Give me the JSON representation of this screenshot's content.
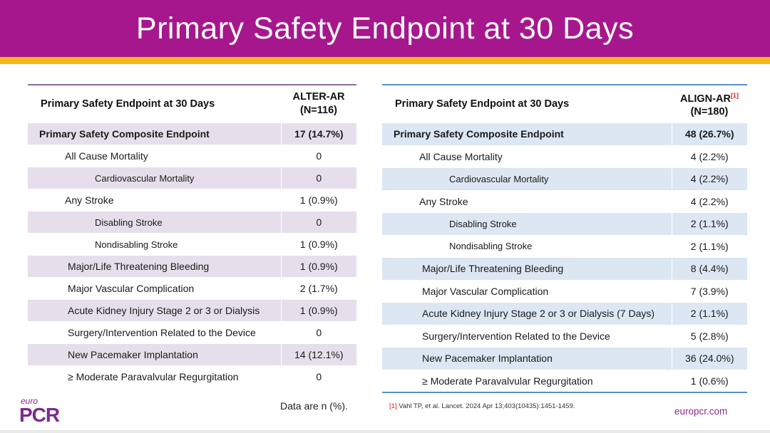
{
  "title": "Primary Safety Endpoint at 30 Days",
  "colors": {
    "title_bar": "#a6178e",
    "stripe": "#f6b719",
    "left_shade": "#e6dfeb",
    "right_shade": "#dce7f3",
    "brand": "#8a2d8a"
  },
  "left_table": {
    "header_name": "Primary Safety Endpoint at 30 Days",
    "header_col_line1": "ALTER-AR",
    "header_col_line2": "(N=116)",
    "rows": [
      {
        "label": "Primary Safety Composite Endpoint",
        "value": "17 (14.7%)"
      },
      {
        "label": "All Cause Mortality",
        "value": "0"
      },
      {
        "label": "Cardiovascular Mortality",
        "value": "0"
      },
      {
        "label": "Any Stroke",
        "value": "1 (0.9%)"
      },
      {
        "label": "Disabling Stroke",
        "value": "0"
      },
      {
        "label": "Nondisabling Stroke",
        "value": "1 (0.9%)"
      },
      {
        "label": "Major/Life Threatening Bleeding",
        "value": "1 (0.9%)"
      },
      {
        "label": "Major Vascular Complication",
        "value": "2 (1.7%)"
      },
      {
        "label": "Acute Kidney Injury Stage 2 or 3 or Dialysis",
        "value": "1 (0.9%)"
      },
      {
        "label": "Surgery/Intervention Related to the Device",
        "value": "0"
      },
      {
        "label": "New Pacemaker Implantation",
        "value": "14 (12.1%)"
      },
      {
        "label": "≥ Moderate Paravalvular Regurgitation",
        "value": "0"
      }
    ]
  },
  "right_table": {
    "header_name": "Primary Safety Endpoint at 30 Days",
    "header_col_line1": "ALIGN-AR",
    "header_col_ref": "[1]",
    "header_col_line2": "(N=180)",
    "rows": [
      {
        "label": "Primary Safety Composite Endpoint",
        "value": "48 (26.7%)"
      },
      {
        "label": "All Cause Mortality",
        "value": "4 (2.2%)"
      },
      {
        "label": "Cardiovascular Mortality",
        "value": "4 (2.2%)"
      },
      {
        "label": "Any Stroke",
        "value": "4 (2.2%)"
      },
      {
        "label": "Disabling Stroke",
        "value": "2 (1.1%)"
      },
      {
        "label": "Nondisabling Stroke",
        "value": "2 (1.1%)"
      },
      {
        "label": "Major/Life Threatening Bleeding",
        "value": "8 (4.4%)"
      },
      {
        "label": "Major Vascular Complication",
        "value": "7 (3.9%)"
      },
      {
        "label": "Acute Kidney Injury Stage 2 or 3 or Dialysis (7 Days)",
        "value": "2 (1.1%)"
      },
      {
        "label": "Surgery/Intervention Related to the Device",
        "value": "5 (2.8%)"
      },
      {
        "label": "New Pacemaker Implantation",
        "value": "36 (24.0%)"
      },
      {
        "label": "≥ Moderate Paravalvular Regurgitation",
        "value": "1 (0.6%)"
      }
    ]
  },
  "footer": {
    "data_note": "Data are n (%).",
    "ref_num": "[1]",
    "ref_text": " Vahl TP, et al. Lancet. 2024 Apr 13;403(10435):1451-1459.",
    "site": "europcr.com",
    "logo_small": "euro",
    "logo_big": "PCR"
  }
}
